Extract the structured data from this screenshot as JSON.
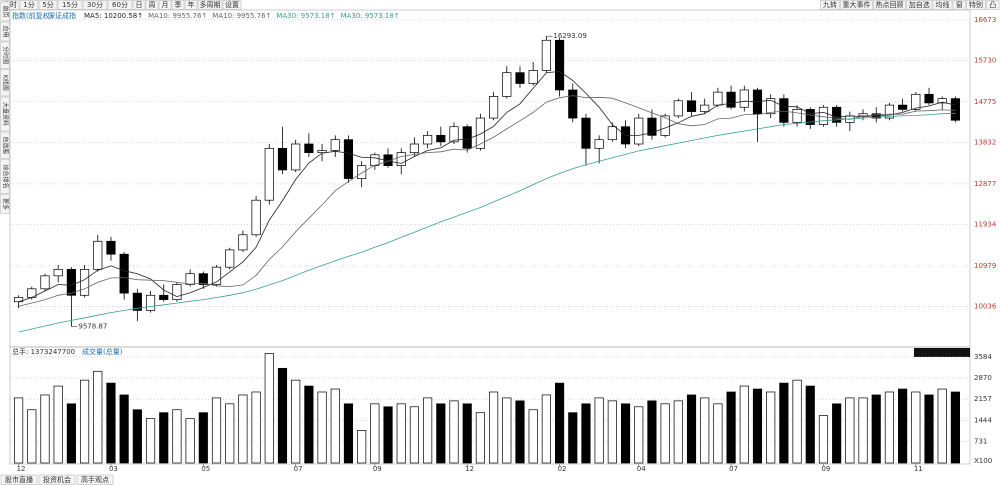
{
  "toolbar": {
    "left": [
      "分时",
      "1分",
      "5分",
      "15分",
      "30分",
      "60分",
      "日",
      "周",
      "月",
      "季",
      "年",
      "多周期",
      "设置"
    ],
    "right": [
      "九转",
      "重大事件",
      "热点回顾",
      "加自选",
      "均线",
      "窗",
      "特别",
      "凸"
    ]
  },
  "sidebar": [
    "首页",
    "应用",
    "分时图",
    "K线图",
    "大盘资料",
    "自选股",
    "综合排名",
    "更多"
  ],
  "bottom_tabs": [
    "股市直播",
    "投资机会",
    "高手观点"
  ],
  "chart_data": {
    "type": "candlestick",
    "title": "指数(前复权)",
    "subtitle": "深证成指",
    "legend_labels": [
      "MA5: 10200.58↑",
      "MA10: 9955.76↑",
      "MA10: 9955.76↑",
      "MA30: 9573.18↑",
      "MA30: 9573.18↑"
    ],
    "categories": [
      "12",
      null,
      null,
      null,
      null,
      null,
      null,
      "03",
      null,
      null,
      null,
      null,
      null,
      null,
      "05",
      null,
      null,
      null,
      null,
      null,
      null,
      "07",
      null,
      null,
      null,
      null,
      null,
      "09",
      null,
      null,
      null,
      null,
      null,
      null,
      "12",
      null,
      null,
      null,
      null,
      null,
      null,
      "02",
      null,
      null,
      null,
      null,
      null,
      "04",
      null,
      null,
      null,
      null,
      null,
      null,
      "07",
      null,
      null,
      null,
      null,
      null,
      null,
      "09",
      null,
      null,
      null,
      null,
      null,
      null,
      "11",
      null,
      null,
      null
    ],
    "open": [
      10150,
      10250,
      10450,
      10750,
      10900,
      10300,
      10900,
      11550,
      11250,
      10350,
      9950,
      10300,
      10200,
      10550,
      10800,
      10550,
      10950,
      11350,
      11700,
      12500,
      13700,
      13200,
      13800,
      13600,
      13650,
      13900,
      13000,
      13300,
      13550,
      13300,
      13600,
      13800,
      14000,
      13850,
      14200,
      13700,
      14400,
      14900,
      15450,
      15200,
      15500,
      16200,
      15050,
      14400,
      13700,
      13900,
      14200,
      13800,
      14400,
      14000,
      14450,
      14800,
      14550,
      14700,
      15000,
      14650,
      15050,
      14500,
      14850,
      14300,
      14600,
      14250,
      14650,
      14300,
      14450,
      14500,
      14400,
      14700,
      14600,
      14950,
      14750,
      14850
    ],
    "high": [
      10300,
      10500,
      10800,
      11000,
      10950,
      11000,
      11700,
      11650,
      11300,
      10450,
      10400,
      10550,
      10600,
      10900,
      10850,
      11000,
      11400,
      11800,
      12600,
      13800,
      14200,
      13900,
      14050,
      13800,
      14000,
      14000,
      13400,
      13600,
      13700,
      13700,
      13950,
      14100,
      14200,
      14300,
      14250,
      14500,
      15000,
      15600,
      15600,
      15700,
      16293.09,
      16250,
      15200,
      14500,
      14000,
      14300,
      14350,
      14500,
      14600,
      14500,
      14850,
      15000,
      14850,
      15100,
      15150,
      15150,
      15100,
      14950,
      14950,
      14700,
      14650,
      14700,
      14700,
      14550,
      14600,
      14650,
      14750,
      14850,
      15000,
      15100,
      14900,
      14900
    ],
    "low": [
      10000,
      10200,
      10400,
      10600,
      9578.87,
      10250,
      10850,
      11100,
      10200,
      9700,
      9900,
      10150,
      10150,
      10500,
      10450,
      10500,
      10900,
      11300,
      11650,
      12400,
      13100,
      13150,
      13500,
      13400,
      13500,
      12900,
      12800,
      13200,
      13250,
      13100,
      13500,
      13700,
      13750,
      13800,
      13600,
      13650,
      14350,
      14850,
      15100,
      15150,
      15450,
      14900,
      14300,
      13300,
      13350,
      13850,
      13700,
      13750,
      13900,
      13950,
      14400,
      14450,
      14500,
      14650,
      14600,
      14550,
      13850,
      14400,
      14200,
      14200,
      14150,
      14200,
      14200,
      14100,
      14350,
      14300,
      14350,
      14550,
      14550,
      14700,
      14600,
      14300
    ],
    "close": [
      10250,
      10450,
      10750,
      10900,
      10300,
      10900,
      11550,
      11250,
      10350,
      9950,
      10300,
      10200,
      10550,
      10800,
      10550,
      10950,
      11350,
      11700,
      12500,
      13700,
      13200,
      13800,
      13600,
      13650,
      13900,
      13000,
      13300,
      13550,
      13300,
      13600,
      13800,
      14000,
      13850,
      14200,
      13700,
      14400,
      14900,
      15450,
      15200,
      15500,
      16200,
      15050,
      14400,
      13700,
      13900,
      14200,
      13800,
      14400,
      14000,
      14450,
      14800,
      14550,
      14700,
      15000,
      14650,
      15050,
      14500,
      14850,
      14300,
      14600,
      14250,
      14650,
      14300,
      14450,
      14500,
      14400,
      14700,
      14600,
      14950,
      14750,
      14850,
      14350
    ],
    "up_color": "#ffffff",
    "down_color": "#000000",
    "edge_color": "#000000",
    "series": [
      {
        "name": "MA5",
        "color": "#222222",
        "values": [
          10150,
          10250,
          10400,
          10550,
          10530,
          10660,
          10880,
          10980,
          10870,
          10800,
          10680,
          10420,
          10270,
          10360,
          10480,
          10610,
          10840,
          11070,
          11410,
          12040,
          12490,
          12980,
          13360,
          13590,
          13630,
          13590,
          13490,
          13480,
          13410,
          13350,
          13510,
          13650,
          13710,
          13890,
          13910,
          14030,
          14210,
          14530,
          14730,
          15090,
          15450,
          15480,
          15270,
          14970,
          14650,
          14250,
          14000,
          14000,
          14060,
          14170,
          14290,
          14440,
          14500,
          14700,
          14740,
          14790,
          14780,
          14810,
          14670,
          14660,
          14500,
          14530,
          14420,
          14450,
          14430,
          14460,
          14470,
          14530,
          14630,
          14680,
          14770,
          14700
        ]
      },
      {
        "name": "MA10",
        "color": "#666666",
        "values": [
          10050,
          10120,
          10200,
          10300,
          10350,
          10450,
          10600,
          10700,
          10710,
          10660,
          10650,
          10640,
          10600,
          10560,
          10580,
          10520,
          10500,
          10540,
          10760,
          11130,
          11420,
          11770,
          12080,
          12390,
          12720,
          12930,
          13130,
          13310,
          13400,
          13510,
          13560,
          13600,
          13620,
          13680,
          13660,
          13800,
          13960,
          14150,
          14340,
          14530,
          14770,
          14870,
          14920,
          14870,
          14880,
          14860,
          14750,
          14640,
          14520,
          14410,
          14270,
          14220,
          14250,
          14380,
          14400,
          14480,
          14480,
          14530,
          14560,
          14520,
          14470,
          14430,
          14400,
          14370,
          14440,
          14480,
          14490,
          14490,
          14560,
          14570,
          14590,
          14580
        ]
      },
      {
        "name": "MA30",
        "color": "#3aa08a",
        "values": [
          9450,
          9520,
          9590,
          9660,
          9720,
          9780,
          9840,
          9900,
          9950,
          10000,
          10040,
          10080,
          10120,
          10160,
          10200,
          10250,
          10300,
          10360,
          10440,
          10540,
          10640,
          10760,
          10880,
          10990,
          11100,
          11200,
          11300,
          11410,
          11520,
          11640,
          11760,
          11880,
          12000,
          12110,
          12220,
          12330,
          12460,
          12590,
          12720,
          12860,
          13000,
          13120,
          13230,
          13320,
          13400,
          13480,
          13560,
          13640,
          13700,
          13760,
          13820,
          13880,
          13940,
          14000,
          14050,
          14100,
          14150,
          14200,
          14250,
          14280,
          14310,
          14340,
          14360,
          14380,
          14400,
          14420,
          14440,
          14450,
          14460,
          14480,
          14500,
          14510
        ]
      }
    ],
    "ylim": [
      9150,
      16900
    ],
    "yticks": [
      16673,
      15730,
      14775,
      13832,
      12877,
      11934,
      10979,
      10036
    ],
    "grid": true,
    "annotations": [
      {
        "text": "16293.09",
        "index": 40,
        "value": 16293.09
      },
      {
        "text": "9578.87",
        "index": 4,
        "value": 9578.87
      }
    ],
    "volume": {
      "label": "总手: 1373247700",
      "title": "成交量(总量)",
      "unit": "X100",
      "values": [
        2200,
        1800,
        2300,
        2600,
        2000,
        2800,
        3100,
        2700,
        2300,
        1800,
        1500,
        1700,
        1800,
        1500,
        1700,
        2200,
        2000,
        2300,
        2400,
        3700,
        3200,
        2800,
        2600,
        2400,
        2500,
        2000,
        1100,
        2000,
        1900,
        2000,
        1900,
        2200,
        2000,
        2100,
        2000,
        1700,
        2400,
        2200,
        2100,
        1800,
        2300,
        2700,
        1700,
        2000,
        2200,
        2100,
        2000,
        1900,
        2100,
        2000,
        2100,
        2300,
        2200,
        2000,
        2400,
        2600,
        2500,
        2400,
        2700,
        2800,
        2600,
        1600,
        2000,
        2200,
        2200,
        2300,
        2400,
        2500,
        2400,
        2300,
        2500,
        2400
      ],
      "ylim": [
        0,
        3650
      ],
      "yticks": [
        3584,
        2870,
        2157,
        1444,
        731
      ]
    }
  }
}
